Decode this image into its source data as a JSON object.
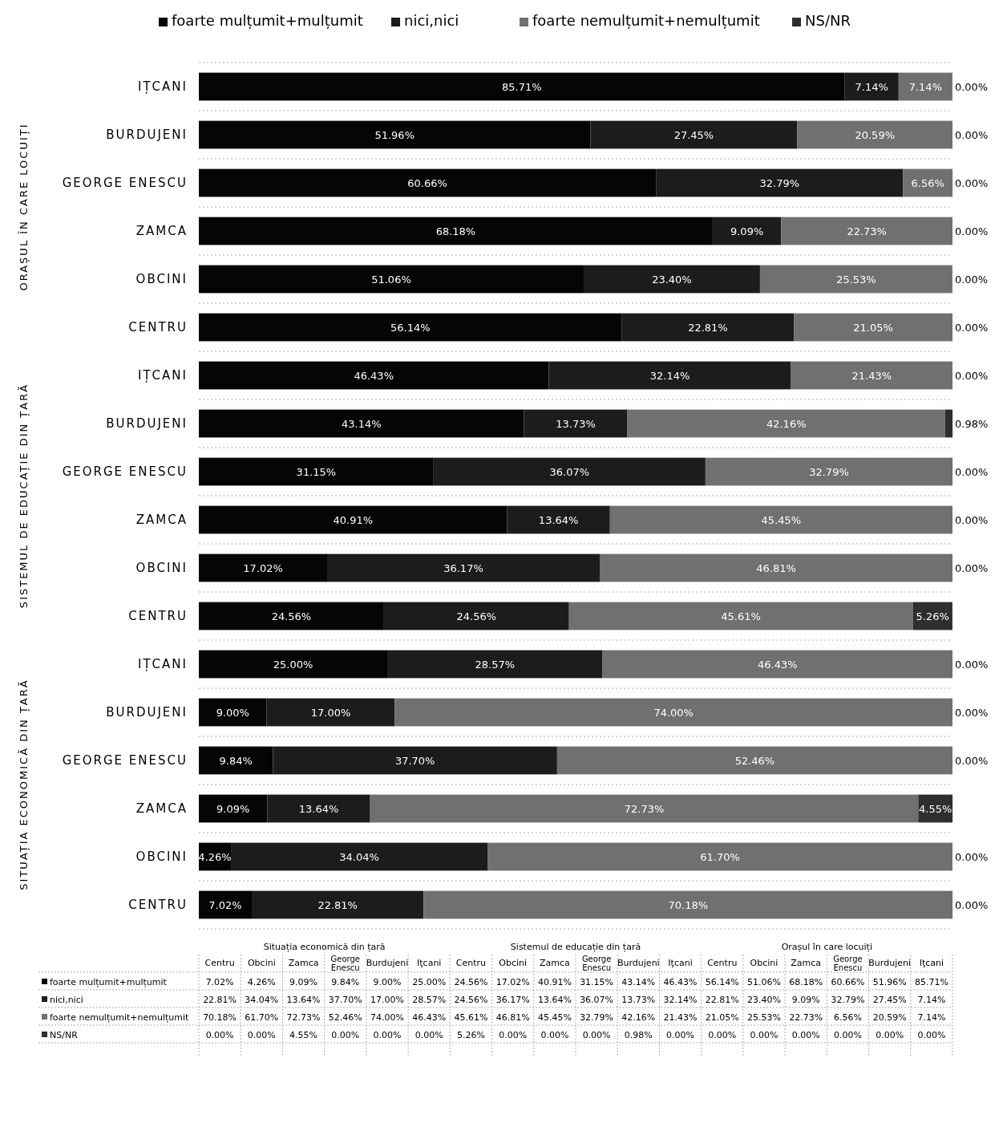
{
  "chart_data": {
    "type": "bar",
    "orientation": "horizontal",
    "stacked": true,
    "categories": [
      "IȚCANI",
      "BURDUJENI",
      "GEORGE ENESCU",
      "ZAMCA",
      "OBCINI",
      "CENTRU",
      "IȚCANI",
      "BURDUJENI",
      "GEORGE ENESCU",
      "ZAMCA",
      "OBCINI",
      "CENTRU",
      "IȚCANI",
      "BURDUJENI",
      "GEORGE ENESCU",
      "ZAMCA",
      "OBCINI",
      "CENTRU"
    ],
    "series": [
      {
        "name": "foarte mulțumit+mulțumit",
        "color": "#050505",
        "values": [
          85.71,
          51.96,
          60.66,
          68.18,
          51.06,
          56.14,
          46.43,
          43.14,
          31.15,
          40.91,
          17.02,
          24.56,
          25.0,
          9.0,
          9.84,
          9.09,
          4.26,
          7.02
        ],
        "value_labels": [
          "85.71%",
          "51.96%",
          "60.66%",
          "68.18%",
          "51.06%",
          "56.14%",
          "46.43%",
          "43.14%",
          "31.15%",
          "40.91%",
          "17.02%",
          "24.56%",
          "25.00%",
          "9.00%",
          "9.84%",
          "9.09%",
          "4.26%",
          "7.02%"
        ]
      },
      {
        "name": "nici,nici",
        "color": "#1c1c1c",
        "values": [
          7.14,
          27.45,
          32.79,
          9.09,
          23.4,
          22.81,
          32.14,
          13.73,
          36.07,
          13.64,
          36.17,
          24.56,
          28.57,
          17.0,
          37.7,
          13.64,
          34.04,
          22.81
        ],
        "value_labels": [
          "7.14%",
          "27.45%",
          "32.79%",
          "9.09%",
          "23.40%",
          "22.81%",
          "32.14%",
          "13.73%",
          "36.07%",
          "13.64%",
          "36.17%",
          "24.56%",
          "28.57%",
          "17.00%",
          "37.70%",
          "13.64%",
          "34.04%",
          "22.81%"
        ]
      },
      {
        "name": "foarte nemulțumit+nemulțumit",
        "color": "#707070",
        "values": [
          7.14,
          20.59,
          6.56,
          22.73,
          25.53,
          21.05,
          21.43,
          42.16,
          32.79,
          45.45,
          46.81,
          45.61,
          46.43,
          74.0,
          52.46,
          72.73,
          61.7,
          70.18
        ],
        "value_labels": [
          "7.14%",
          "20.59%",
          "6.56%",
          "22.73%",
          "25.53%",
          "21.05%",
          "21.43%",
          "42.16%",
          "32.79%",
          "45.45%",
          "46.81%",
          "45.61%",
          "46.43%",
          "74.00%",
          "52.46%",
          "72.73%",
          "61.70%",
          "70.18%"
        ]
      },
      {
        "name": "NS/NR",
        "color": "#2e2e2e",
        "values": [
          0,
          0,
          0,
          0,
          0,
          0,
          0,
          0.98,
          0,
          0,
          0,
          5.26,
          0,
          0,
          0,
          4.55,
          0,
          0
        ],
        "value_labels": [
          "0.00%",
          "0.00%",
          "0.00%",
          "0.00%",
          "0.00%",
          "0.00%",
          "0.00%",
          "0.98%",
          "0.00%",
          "0.00%",
          "0.00%",
          "5.26%",
          "0.00%",
          "0.00%",
          "0.00%",
          "4.55%",
          "0.00%",
          "0.00%"
        ]
      }
    ],
    "xlim": [
      0,
      100
    ],
    "tick_labels": "y",
    "legend": "top",
    "annotations": [
      "ORAȘUL ÎN CARE LOCUIȚI",
      "SISTEMUL DE EDUCAȚIE DIN ȚARĂ",
      "SITUAȚIA ECONOMICĂ DIN ȚARĂ",
      "Situația economică din țară",
      "Sistemul de educație din țară",
      "Orașul în care locuiți",
      "Centru",
      "Obcini",
      "Zamca",
      "George Enescu",
      "Burdujeni",
      "Iţcani"
    ]
  }
}
